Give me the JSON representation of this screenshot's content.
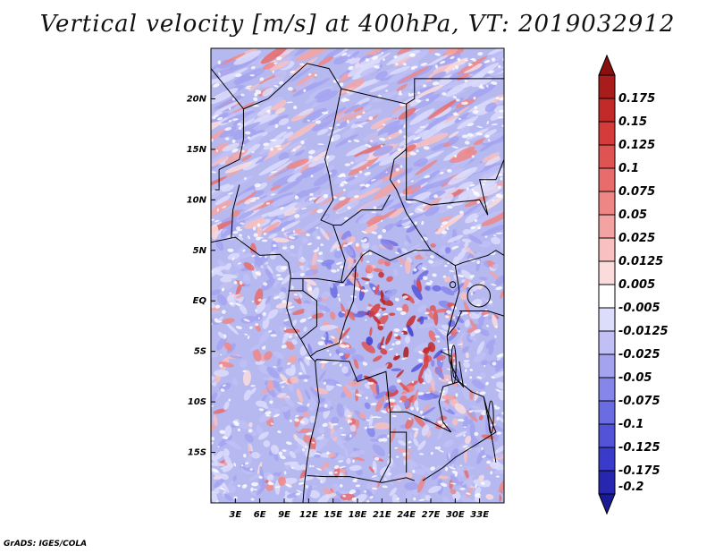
{
  "title": "Vertical velocity [m/s] at 400hPa, VT: 2019032912",
  "credit": "GrADS: IGES/COLA",
  "map": {
    "lon_range": [
      0,
      36
    ],
    "lat_range": [
      -20,
      25
    ],
    "lat_ticks": [
      {
        "value": 20,
        "label": "20N"
      },
      {
        "value": 15,
        "label": "15N"
      },
      {
        "value": 10,
        "label": "10N"
      },
      {
        "value": 5,
        "label": "5N"
      },
      {
        "value": 0,
        "label": "EQ"
      },
      {
        "value": -5,
        "label": "5S"
      },
      {
        "value": -10,
        "label": "10S"
      },
      {
        "value": -15,
        "label": "15S"
      }
    ],
    "lon_ticks": [
      {
        "value": 3,
        "label": "3E"
      },
      {
        "value": 6,
        "label": "6E"
      },
      {
        "value": 9,
        "label": "9E"
      },
      {
        "value": 12,
        "label": "12E"
      },
      {
        "value": 15,
        "label": "15E"
      },
      {
        "value": 18,
        "label": "18E"
      },
      {
        "value": 21,
        "label": "21E"
      },
      {
        "value": 24,
        "label": "24E"
      },
      {
        "value": 27,
        "label": "27E"
      },
      {
        "value": 30,
        "label": "30E"
      },
      {
        "value": 33,
        "label": "33E"
      }
    ]
  },
  "colorbar": {
    "levels": [
      {
        "label": "0.175",
        "color": "#a81c1c"
      },
      {
        "label": "0.15",
        "color": "#c22a2a"
      },
      {
        "label": "0.125",
        "color": "#d63b3b"
      },
      {
        "label": "0.1",
        "color": "#e05353"
      },
      {
        "label": "0.075",
        "color": "#e86c6c"
      },
      {
        "label": "0.05",
        "color": "#ef8686"
      },
      {
        "label": "0.025",
        "color": "#f4a3a3"
      },
      {
        "label": "0.0125",
        "color": "#f8c0c0"
      },
      {
        "label": "0.005",
        "color": "#fbdcdc"
      },
      {
        "label": "-0.005",
        "color": "#ffffff"
      },
      {
        "label": "-0.0125",
        "color": "#dcdcfb"
      },
      {
        "label": "-0.025",
        "color": "#c0c0f6"
      },
      {
        "label": "-0.05",
        "color": "#a3a3f0"
      },
      {
        "label": "-0.075",
        "color": "#8686ea"
      },
      {
        "label": "-0.1",
        "color": "#6c6ce2"
      },
      {
        "label": "-0.125",
        "color": "#5353d8"
      },
      {
        "label": "-0.175",
        "color": "#3b3bcb"
      },
      {
        "label": "-0.2",
        "color": "#2626b0"
      }
    ],
    "top_arrow_color": "#8a1010",
    "bottom_arrow_color": "#1a1a96"
  }
}
